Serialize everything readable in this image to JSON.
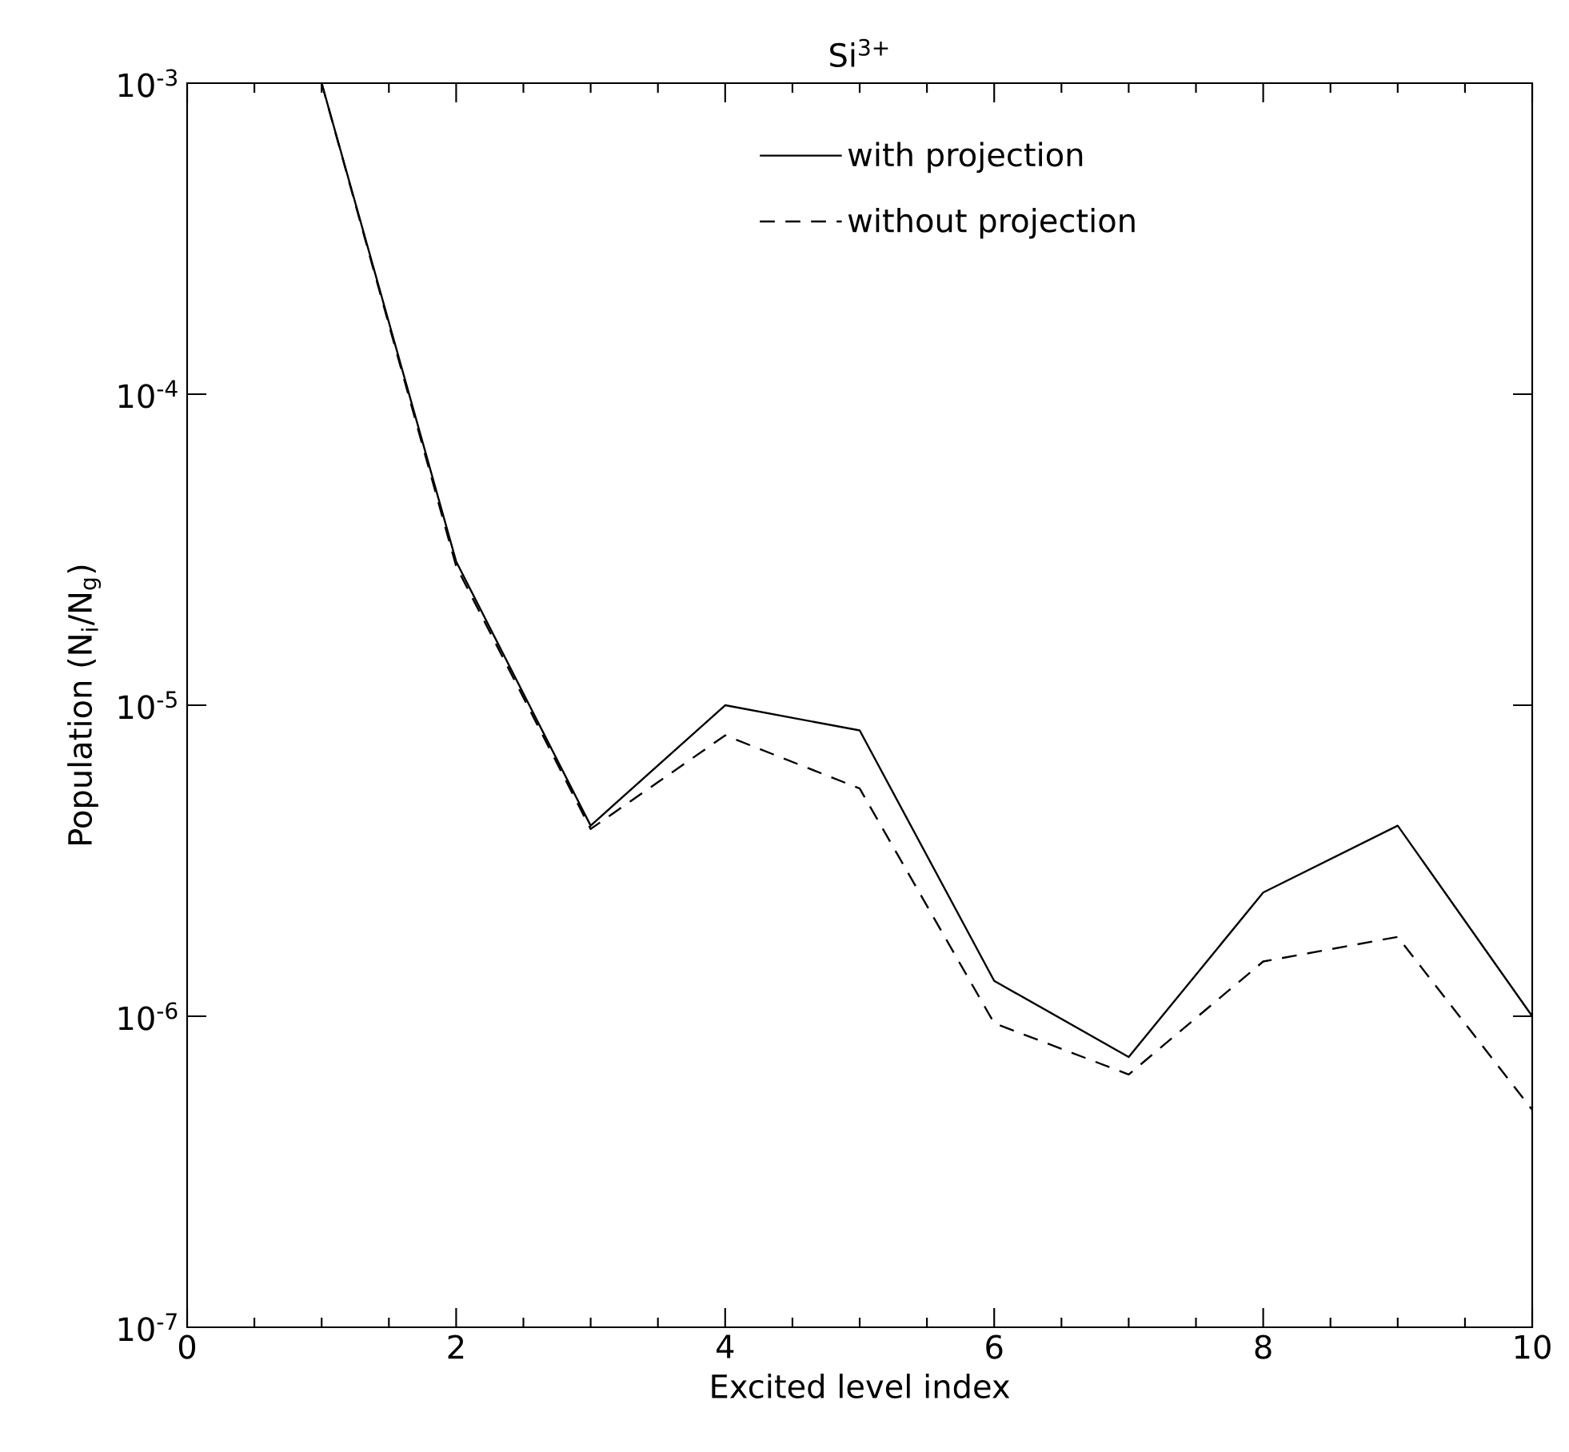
{
  "chart_data": {
    "type": "line",
    "title": "Si$^{3+}$",
    "xlabel": "Excited level index",
    "ylabel": "Population (N$_{i}$/N$_{g}$)",
    "x": [
      1,
      2,
      3,
      4,
      5,
      6,
      7,
      8,
      9,
      10
    ],
    "series": [
      {
        "name": "with projection",
        "color": "#000000",
        "line_style": "solid",
        "values": [
          0.001,
          2.9e-05,
          4.1e-06,
          1e-05,
          8.3e-06,
          1.3e-06,
          7.4e-07,
          2.5e-06,
          4.1e-06,
          1e-06
        ]
      },
      {
        "name": "without projection",
        "color": "#000000",
        "line_style": "dashed",
        "values": [
          0.001,
          2.8e-05,
          4e-06,
          8e-06,
          5.4e-06,
          9.5e-07,
          6.5e-07,
          1.5e-06,
          1.8e-06,
          5e-07
        ]
      }
    ],
    "xlim": [
      0,
      10
    ],
    "xticks": [
      0,
      2,
      4,
      6,
      8,
      10
    ],
    "ylim": [
      1e-07,
      0.001
    ],
    "yticks": [
      {
        "value": 1e-07,
        "label": "10$^{-7}$"
      },
      {
        "value": 1e-06,
        "label": "10$^{-6}$"
      },
      {
        "value": 1e-05,
        "label": "10$^{-5}$"
      },
      {
        "value": 0.0001,
        "label": "10$^{-4}$"
      },
      {
        "value": 0.001,
        "label": "10$^{-3}$"
      }
    ],
    "log": "y",
    "grid": false,
    "legend": "top right",
    "marker": "none"
  }
}
